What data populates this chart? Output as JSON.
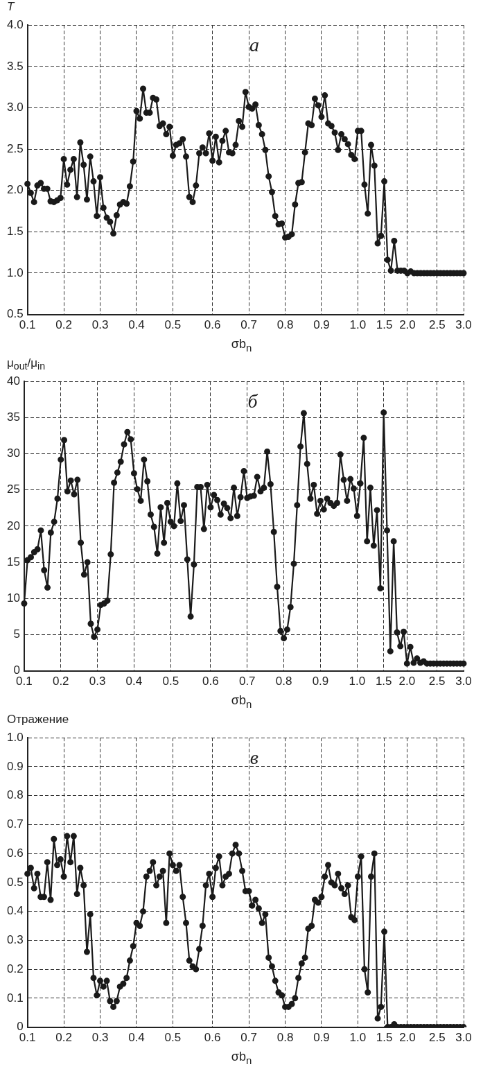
{
  "chart_data": [
    {
      "type": "line",
      "ylabel": "T",
      "xlabel": "σb$_{n}$",
      "annotations": [
        "а"
      ],
      "grid": true,
      "marker": "circle",
      "line_style": "solid",
      "categories": [
        "0.1",
        null,
        null,
        null,
        null,
        null,
        null,
        null,
        null,
        null,
        null,
        "0.2",
        null,
        null,
        null,
        null,
        null,
        null,
        null,
        null,
        null,
        null,
        "0.3",
        null,
        null,
        null,
        null,
        null,
        null,
        null,
        null,
        null,
        null,
        "0.4",
        null,
        null,
        null,
        null,
        null,
        null,
        null,
        null,
        null,
        null,
        "0.5",
        null,
        null,
        null,
        null,
        null,
        null,
        null,
        null,
        null,
        null,
        null,
        "0.6",
        null,
        null,
        null,
        null,
        null,
        null,
        null,
        null,
        null,
        null,
        "0.7",
        null,
        null,
        null,
        null,
        null,
        null,
        null,
        null,
        null,
        null,
        "0.8",
        null,
        null,
        null,
        null,
        null,
        null,
        null,
        null,
        null,
        null,
        "0.9",
        null,
        null,
        null,
        null,
        null,
        null,
        null,
        null,
        null,
        null,
        "1.0",
        null,
        null,
        null,
        null,
        null,
        null,
        null,
        "1.5",
        null,
        null,
        null,
        null,
        null,
        null,
        "2.0",
        null,
        null,
        null,
        null,
        null,
        null,
        null,
        null,
        "2.5",
        null,
        null,
        null,
        null,
        null,
        null,
        null,
        "3.0"
      ],
      "ylim": [
        0.5,
        4.0
      ],
      "yticks": [
        0.5,
        {
          "value": 1,
          "label": "1.0"
        },
        1.5,
        {
          "value": 2,
          "label": "2.0"
        },
        2.5,
        {
          "value": 3,
          "label": "3.0"
        },
        3.5,
        {
          "value": 4,
          "label": "4.0"
        }
      ],
      "series": [
        {
          "color": "#1a1a1a",
          "values": [
            2.08,
            1.97,
            1.86,
            2.06,
            2.09,
            2.02,
            2.02,
            1.87,
            1.86,
            1.88,
            1.91,
            2.38,
            2.07,
            2.25,
            2.38,
            1.92,
            2.58,
            2.31,
            1.89,
            2.41,
            2.11,
            1.69,
            2.16,
            1.79,
            1.67,
            1.62,
            1.48,
            1.7,
            1.83,
            1.86,
            1.84,
            2.05,
            2.35,
            2.96,
            2.87,
            3.23,
            2.94,
            2.94,
            3.12,
            3.1,
            2.78,
            2.81,
            2.68,
            2.77,
            2.42,
            2.55,
            2.57,
            2.62,
            2.41,
            1.92,
            1.86,
            2.06,
            2.45,
            2.52,
            2.45,
            2.69,
            2.36,
            2.65,
            2.34,
            2.6,
            2.72,
            2.46,
            2.45,
            2.55,
            2.84,
            2.77,
            3.19,
            3.01,
            2.99,
            3.04,
            2.79,
            2.68,
            2.49,
            2.17,
            1.98,
            1.69,
            1.59,
            1.6,
            1.43,
            1.44,
            1.47,
            1.83,
            2.09,
            2.1,
            2.46,
            2.81,
            2.79,
            3.11,
            3.03,
            2.89,
            3.15,
            2.81,
            2.78,
            2.7,
            2.49,
            2.68,
            2.62,
            2.56,
            2.43,
            2.38,
            2.72,
            2.72,
            2.07,
            1.72,
            2.55,
            2.3,
            1.36,
            1.45,
            2.11,
            1.16,
            1.03,
            1.39,
            1.03,
            1.03,
            1.03,
            1.0,
            1.02,
            1.0,
            1.0,
            1.0,
            1.0,
            1.0,
            1.0,
            1.0,
            1.0,
            1.0,
            1.0,
            1.0,
            1.0,
            1.0,
            1.0,
            1.0,
            1.0
          ]
        }
      ]
    },
    {
      "type": "line",
      "ylabel": "μ$_{out}$/μ$_{in}$",
      "xlabel": "σb$_{n}$",
      "annotations": [
        "б"
      ],
      "grid": true,
      "marker": "circle",
      "line_style": "solid",
      "categories": [
        "0.1",
        null,
        null,
        null,
        null,
        null,
        null,
        null,
        null,
        null,
        null,
        "0.2",
        null,
        null,
        null,
        null,
        null,
        null,
        null,
        null,
        null,
        null,
        "0.3",
        null,
        null,
        null,
        null,
        null,
        null,
        null,
        null,
        null,
        null,
        "0.4",
        null,
        null,
        null,
        null,
        null,
        null,
        null,
        null,
        null,
        null,
        "0.5",
        null,
        null,
        null,
        null,
        null,
        null,
        null,
        null,
        null,
        null,
        null,
        "0.6",
        null,
        null,
        null,
        null,
        null,
        null,
        null,
        null,
        null,
        null,
        "0.7",
        null,
        null,
        null,
        null,
        null,
        null,
        null,
        null,
        null,
        null,
        "0.8",
        null,
        null,
        null,
        null,
        null,
        null,
        null,
        null,
        null,
        null,
        "0.9",
        null,
        null,
        null,
        null,
        null,
        null,
        null,
        null,
        null,
        null,
        "1.0",
        null,
        null,
        null,
        null,
        null,
        null,
        null,
        "1.5",
        null,
        null,
        null,
        null,
        null,
        null,
        "2.0",
        null,
        null,
        null,
        null,
        null,
        null,
        null,
        null,
        "2.5",
        null,
        null,
        null,
        null,
        null,
        null,
        null,
        "3.0"
      ],
      "ylim": [
        0,
        40
      ],
      "yticks": [
        0,
        5,
        10,
        15,
        20,
        25,
        30,
        35,
        40
      ],
      "series": [
        {
          "color": "#1a1a1a",
          "values": [
            9.3,
            15.3,
            15.7,
            16.4,
            16.8,
            19.4,
            13.9,
            11.5,
            19.1,
            20.6,
            23.8,
            29.2,
            31.9,
            24.8,
            26.3,
            24.4,
            26.4,
            17.7,
            13.3,
            15.0,
            6.5,
            4.7,
            5.7,
            9.1,
            9.3,
            9.7,
            16.1,
            26.0,
            27.4,
            28.9,
            31.3,
            33.0,
            32.0,
            27.3,
            25.1,
            23.5,
            29.2,
            26.2,
            21.6,
            19.9,
            16.2,
            22.6,
            17.7,
            23.2,
            20.6,
            20.0,
            25.9,
            20.7,
            22.9,
            15.4,
            7.5,
            14.7,
            25.4,
            25.4,
            19.6,
            25.7,
            22.6,
            24.3,
            23.6,
            21.6,
            23.1,
            22.5,
            21.1,
            25.3,
            21.4,
            24.0,
            27.6,
            23.9,
            24.1,
            24.2,
            26.8,
            24.8,
            25.3,
            30.3,
            25.8,
            19.2,
            11.6,
            5.5,
            4.5,
            5.7,
            8.8,
            14.8,
            22.9,
            31.0,
            35.6,
            28.6,
            23.8,
            25.7,
            21.7,
            23.5,
            22.3,
            23.8,
            23.2,
            22.8,
            23.2,
            29.9,
            26.4,
            23.5,
            26.5,
            25.2,
            21.4,
            25.9,
            32.2,
            17.9,
            25.3,
            17.3,
            22.2,
            11.4,
            35.7,
            19.4,
            2.7,
            17.9,
            5.3,
            3.4,
            5.4,
            1.0,
            3.3,
            1.1,
            1.7,
            1.1,
            1.3,
            1.0,
            1.0,
            1.0,
            1.0,
            1.0,
            1.0,
            1.0,
            1.0,
            1.0,
            1.0,
            1.0,
            1.0
          ]
        }
      ]
    },
    {
      "type": "line",
      "ylabel": "Отражение",
      "xlabel": "σb$_{n}$",
      "annotations": [
        "в"
      ],
      "grid": true,
      "marker": "circle",
      "line_style": "solid",
      "categories": [
        "0.1",
        null,
        null,
        null,
        null,
        null,
        null,
        null,
        null,
        null,
        null,
        "0.2",
        null,
        null,
        null,
        null,
        null,
        null,
        null,
        null,
        null,
        null,
        "0.3",
        null,
        null,
        null,
        null,
        null,
        null,
        null,
        null,
        null,
        null,
        "0.4",
        null,
        null,
        null,
        null,
        null,
        null,
        null,
        null,
        null,
        null,
        "0.5",
        null,
        null,
        null,
        null,
        null,
        null,
        null,
        null,
        null,
        null,
        null,
        "0.6",
        null,
        null,
        null,
        null,
        null,
        null,
        null,
        null,
        null,
        null,
        "0.7",
        null,
        null,
        null,
        null,
        null,
        null,
        null,
        null,
        null,
        null,
        "0.8",
        null,
        null,
        null,
        null,
        null,
        null,
        null,
        null,
        null,
        null,
        "0.9",
        null,
        null,
        null,
        null,
        null,
        null,
        null,
        null,
        null,
        null,
        "1.0",
        null,
        null,
        null,
        null,
        null,
        null,
        null,
        "1.5",
        null,
        null,
        null,
        null,
        null,
        null,
        "2.0",
        null,
        null,
        null,
        null,
        null,
        null,
        null,
        null,
        "2.5",
        null,
        null,
        null,
        null,
        null,
        null,
        null,
        "3.0"
      ],
      "ylim": [
        0,
        1
      ],
      "yticks": [
        0,
        0.1,
        0.2,
        0.3,
        0.4,
        0.5,
        0.6,
        0.7,
        0.8,
        0.9,
        {
          "value": 1,
          "label": "1.0"
        }
      ],
      "series": [
        {
          "color": "#1a1a1a",
          "values": [
            0.53,
            0.55,
            0.48,
            0.53,
            0.45,
            0.45,
            0.57,
            0.44,
            0.65,
            0.56,
            0.58,
            0.52,
            0.66,
            0.57,
            0.66,
            0.46,
            0.55,
            0.49,
            0.26,
            0.39,
            0.17,
            0.11,
            0.16,
            0.14,
            0.16,
            0.09,
            0.07,
            0.09,
            0.14,
            0.15,
            0.17,
            0.23,
            0.28,
            0.36,
            0.35,
            0.4,
            0.52,
            0.54,
            0.57,
            0.49,
            0.52,
            0.54,
            0.36,
            0.6,
            0.56,
            0.54,
            0.56,
            0.45,
            0.36,
            0.23,
            0.21,
            0.2,
            0.27,
            0.35,
            0.49,
            0.53,
            0.45,
            0.55,
            0.59,
            0.49,
            0.52,
            0.53,
            0.6,
            0.63,
            0.6,
            0.54,
            0.47,
            0.47,
            0.42,
            0.44,
            0.41,
            0.36,
            0.39,
            0.24,
            0.21,
            0.16,
            0.12,
            0.11,
            0.07,
            0.07,
            0.08,
            0.1,
            0.17,
            0.22,
            0.24,
            0.34,
            0.35,
            0.44,
            0.43,
            0.45,
            0.52,
            0.56,
            0.5,
            0.49,
            0.53,
            0.48,
            0.46,
            0.49,
            0.38,
            0.37,
            0.52,
            0.59,
            0.2,
            0.12,
            0.52,
            0.6,
            0.03,
            0.07,
            0.33,
            0,
            0,
            0.01,
            0,
            0,
            0,
            0,
            0,
            0,
            0,
            0,
            0,
            0,
            0,
            0,
            0,
            0,
            0,
            0,
            0,
            0,
            0,
            0,
            0
          ]
        }
      ]
    }
  ]
}
